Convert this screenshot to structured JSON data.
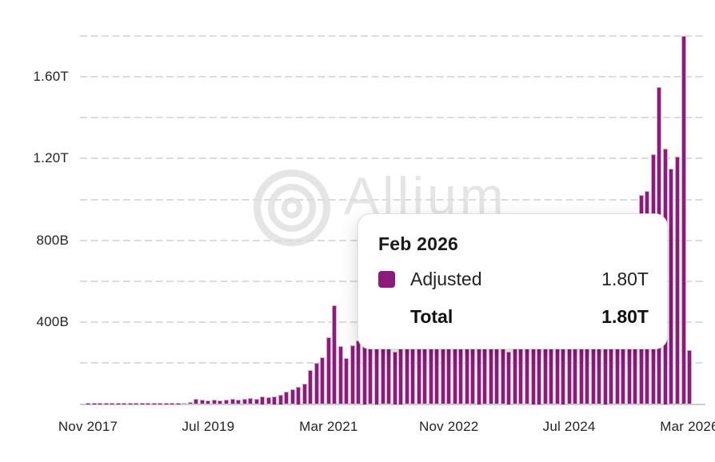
{
  "watermark": {
    "text": "Allium"
  },
  "tooltip": {
    "title": "Feb 2026",
    "rows": [
      {
        "label": "Adjusted",
        "value": "1.80T",
        "swatch": true,
        "bold": false
      },
      {
        "label": "Total",
        "value": "1.80T",
        "swatch": false,
        "bold": true
      }
    ]
  },
  "colors": {
    "bar": "#8E1A7E",
    "bar_edge": "#D8AAD2",
    "grid": "#DCDCDC",
    "axis_line": "#CBCBCB",
    "label": "#232323",
    "watermark": "#E5E5E5"
  },
  "chart_data": {
    "type": "bar",
    "title": "",
    "series_name": "Adjusted",
    "unit": "billions",
    "start_month": "Nov 2017",
    "end_month": "Mar 2026",
    "values": [
      1.5,
      2,
      2,
      2,
      2,
      2,
      2,
      2,
      2,
      2.5,
      2.5,
      3,
      3.5,
      4,
      5,
      6,
      7,
      9,
      25,
      22,
      18,
      22,
      18,
      22,
      27,
      22,
      24,
      31,
      27,
      39,
      33,
      39,
      47,
      59,
      71,
      86,
      100,
      165,
      200,
      227,
      325,
      482,
      282,
      223,
      286,
      310,
      330,
      355,
      375,
      395,
      405,
      256,
      420,
      415,
      405,
      400,
      395,
      398,
      405,
      415,
      425,
      435,
      440,
      445,
      450,
      455,
      460,
      468,
      476,
      485,
      256,
      505,
      515,
      525,
      535,
      545,
      555,
      565,
      575,
      588,
      600,
      618,
      636,
      655,
      675,
      695,
      715,
      735,
      755,
      778,
      800,
      855,
      1020,
      1040,
      1220,
      1550,
      1250,
      1150,
      1210,
      1800,
      265
    ],
    "highlighted_index": 99,
    "highlighted_month": "Feb 2026",
    "highlighted_value_label": "1.80T",
    "xtick_labels": [
      "Nov 2017",
      "Jul 2019",
      "Mar 2021",
      "Nov 2022",
      "Jul 2024",
      "Mar 2026"
    ],
    "xtick_month_indices": [
      0,
      20,
      40,
      60,
      80,
      100
    ],
    "ytick_labels": [
      "400B",
      "800B",
      "1.20T",
      "1.60T"
    ],
    "ytick_values": [
      400,
      800,
      1200,
      1600
    ],
    "gridline_values": [
      200,
      400,
      600,
      800,
      1000,
      1200,
      1400,
      1600,
      1800
    ],
    "ylim": [
      0,
      1880
    ],
    "grid": "dashed-horizontal",
    "legend_position": "tooltip"
  }
}
